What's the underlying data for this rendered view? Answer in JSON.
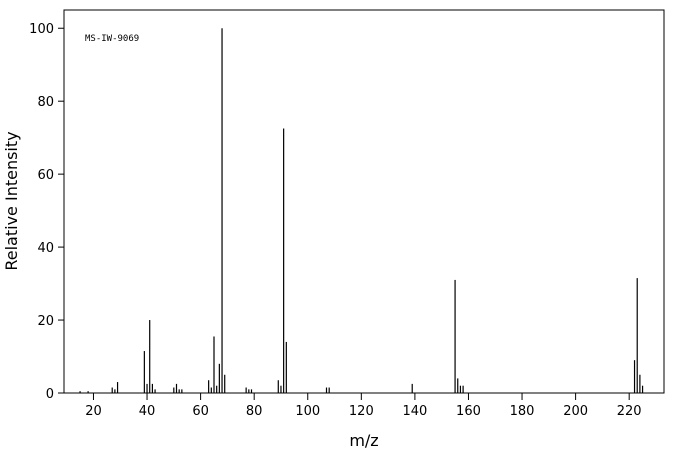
{
  "chart_data": {
    "type": "stem",
    "annotation": "MS-IW-9069",
    "xlabel": "m/z",
    "ylabel": "Relative Intensity",
    "x": [
      15,
      18,
      27,
      28,
      29,
      39,
      40,
      41,
      42,
      43,
      50,
      51,
      52,
      53,
      63,
      64,
      65,
      66,
      67,
      68,
      69,
      77,
      78,
      79,
      89,
      90,
      91,
      92,
      107,
      108,
      139,
      155,
      156,
      157,
      158,
      222,
      223,
      224,
      225
    ],
    "values": [
      0.5,
      0.5,
      1.5,
      1,
      3,
      11.5,
      2.5,
      20,
      2.5,
      1,
      1.5,
      2.5,
      1,
      1,
      3.5,
      1.5,
      15.5,
      2,
      8,
      100,
      5,
      1.5,
      1,
      1,
      3.5,
      2,
      72.5,
      14,
      1.5,
      1.5,
      2.5,
      31,
      4,
      2,
      2,
      9,
      31.5,
      5,
      2
    ],
    "color": "#000000",
    "xlim": [
      9,
      233
    ],
    "xticks": [
      20,
      40,
      60,
      80,
      100,
      120,
      140,
      160,
      180,
      200,
      220
    ],
    "ylim": [
      0,
      105
    ],
    "yticks": [
      0,
      20,
      40,
      60,
      80,
      100
    ]
  }
}
